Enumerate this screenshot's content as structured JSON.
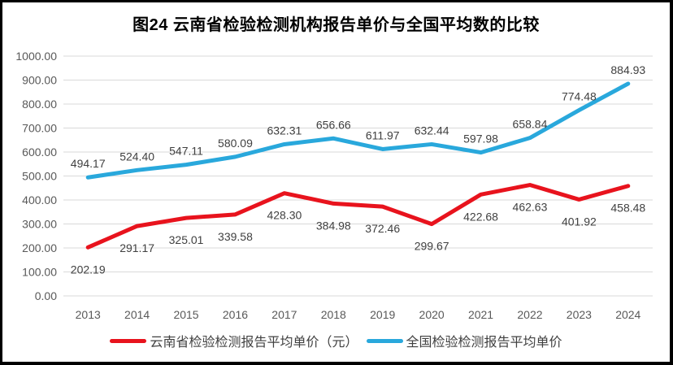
{
  "title": "图24 云南省检验检测机构报告单价与全国平均数的比较",
  "colors": {
    "frame_border": "#000000",
    "background": "#ffffff",
    "gridline": "#d9d9d9",
    "tick_label": "#595959",
    "data_label": "#404040",
    "title_text": "#000000",
    "legend_text": "#404040",
    "series_yunnan": "#e8131d",
    "series_national": "#29a8dc"
  },
  "chart_data": {
    "type": "line",
    "title": "图24 云南省检验检测机构报告单价与全国平均数的比较",
    "categories": [
      "2013",
      "2014",
      "2015",
      "2016",
      "2017",
      "2018",
      "2019",
      "2020",
      "2021",
      "2022",
      "2023",
      "2024"
    ],
    "series": [
      {
        "name": "云南省检验检测报告平均单价（元）",
        "color": "#e8131d",
        "label_placement": "below",
        "values": [
          202.19,
          291.17,
          325.01,
          339.58,
          428.3,
          384.98,
          372.46,
          299.67,
          422.68,
          462.63,
          401.92,
          458.48
        ]
      },
      {
        "name": "全国检验检测报告平均单价",
        "color": "#29a8dc",
        "label_placement": "above",
        "values": [
          494.17,
          524.4,
          547.11,
          580.09,
          632.31,
          656.66,
          611.97,
          632.44,
          597.98,
          658.84,
          774.48,
          884.93
        ]
      }
    ],
    "xlabel": "",
    "ylabel": "",
    "ylim": [
      0,
      1000
    ],
    "ytick_step": 100,
    "ytick_labels": [
      "0.00",
      "100.00",
      "200.00",
      "300.00",
      "400.00",
      "500.00",
      "600.00",
      "700.00",
      "800.00",
      "900.00",
      "1000.00"
    ],
    "grid": "horizontal",
    "data_labels_decimals": 2,
    "legend_position": "bottom"
  }
}
